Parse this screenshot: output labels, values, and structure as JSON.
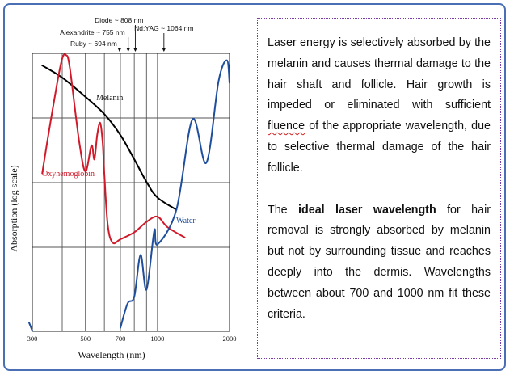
{
  "chart_data": {
    "type": "line",
    "xlabel": "Wavelength (nm)",
    "ylabel": "Absorption (log scale)",
    "x_scale": "log",
    "y_scale": "log",
    "grid": true,
    "x_ticks": [
      "300",
      "500",
      "700",
      "1000",
      "2000"
    ],
    "x_tick_values": [
      300,
      500,
      700,
      1000,
      2000
    ],
    "x_gridlines": [
      300,
      400,
      500,
      600,
      700,
      800,
      900,
      1000,
      2000
    ],
    "series": [
      {
        "name": "Melanin",
        "color": "#000000",
        "x": [
          330,
          400,
          500,
          600,
          700,
          800,
          900,
          1000,
          1200
        ],
        "y": [
          9.3,
          8.6,
          7.5,
          6.5,
          5.3,
          3.9,
          2.6,
          1.7,
          1.0
        ]
      },
      {
        "name": "Oxyhemoglobin",
        "color": "#d01a2a",
        "x": [
          330,
          350,
          380,
          400,
          415,
          430,
          470,
          500,
          530,
          545,
          560,
          576,
          590,
          600,
          620,
          650,
          700,
          800,
          900,
          1000,
          1100,
          1300
        ],
        "y": [
          3.1,
          5.3,
          8.2,
          9.7,
          9.9,
          9.2,
          5.0,
          3.2,
          4.7,
          3.9,
          5.3,
          6.0,
          4.9,
          3.0,
          0.1,
          -0.9,
          -0.7,
          -0.3,
          0.3,
          0.6,
          0.0,
          -0.6
        ]
      },
      {
        "name": "Water",
        "color": "#1f4e9c",
        "x": [
          300,
          700,
          750,
          800,
          850,
          900,
          970,
          1000,
          1200,
          1400,
          1600,
          1800,
          1950,
          2000
        ],
        "y": [
          -5.5,
          -5.8,
          -4.4,
          -4.0,
          -1.6,
          -3.6,
          -0.2,
          -1.0,
          1.0,
          6.2,
          3.7,
          8.4,
          9.6,
          8.3
        ]
      }
    ],
    "annotations": [
      {
        "label": "Diode ~ 808 nm",
        "x": 808
      },
      {
        "label": "Alexandrite ~ 755 nm",
        "x": 755
      },
      {
        "label": "Ruby ~ 694 nm",
        "x": 694
      },
      {
        "label": "Nd:YAG ~ 1064 nm",
        "x": 1064
      }
    ]
  },
  "text_panel": {
    "p1": {
      "a": "Laser energy is selectively absorbed by the melanin and causes thermal damage to the hair shaft and follicle. Hair growth is impeded or eliminated with sufficient ",
      "underlined": "fluence",
      "b": " of the appropriate wavelength, due to selective thermal damage of the hair follicle."
    },
    "p2": {
      "a": "The ",
      "bold": "ideal laser wavelength",
      "b": " for hair removal is strongly absorbed by melanin but not by surrounding tissue and reaches deeply into the dermis. Wavelengths between about 700 and 1000 nm fit these criteria."
    }
  },
  "colors": {
    "frame_border": "#4a6fb5",
    "textbox_border": "#7a3aa8",
    "squiggle": "#d02020"
  }
}
